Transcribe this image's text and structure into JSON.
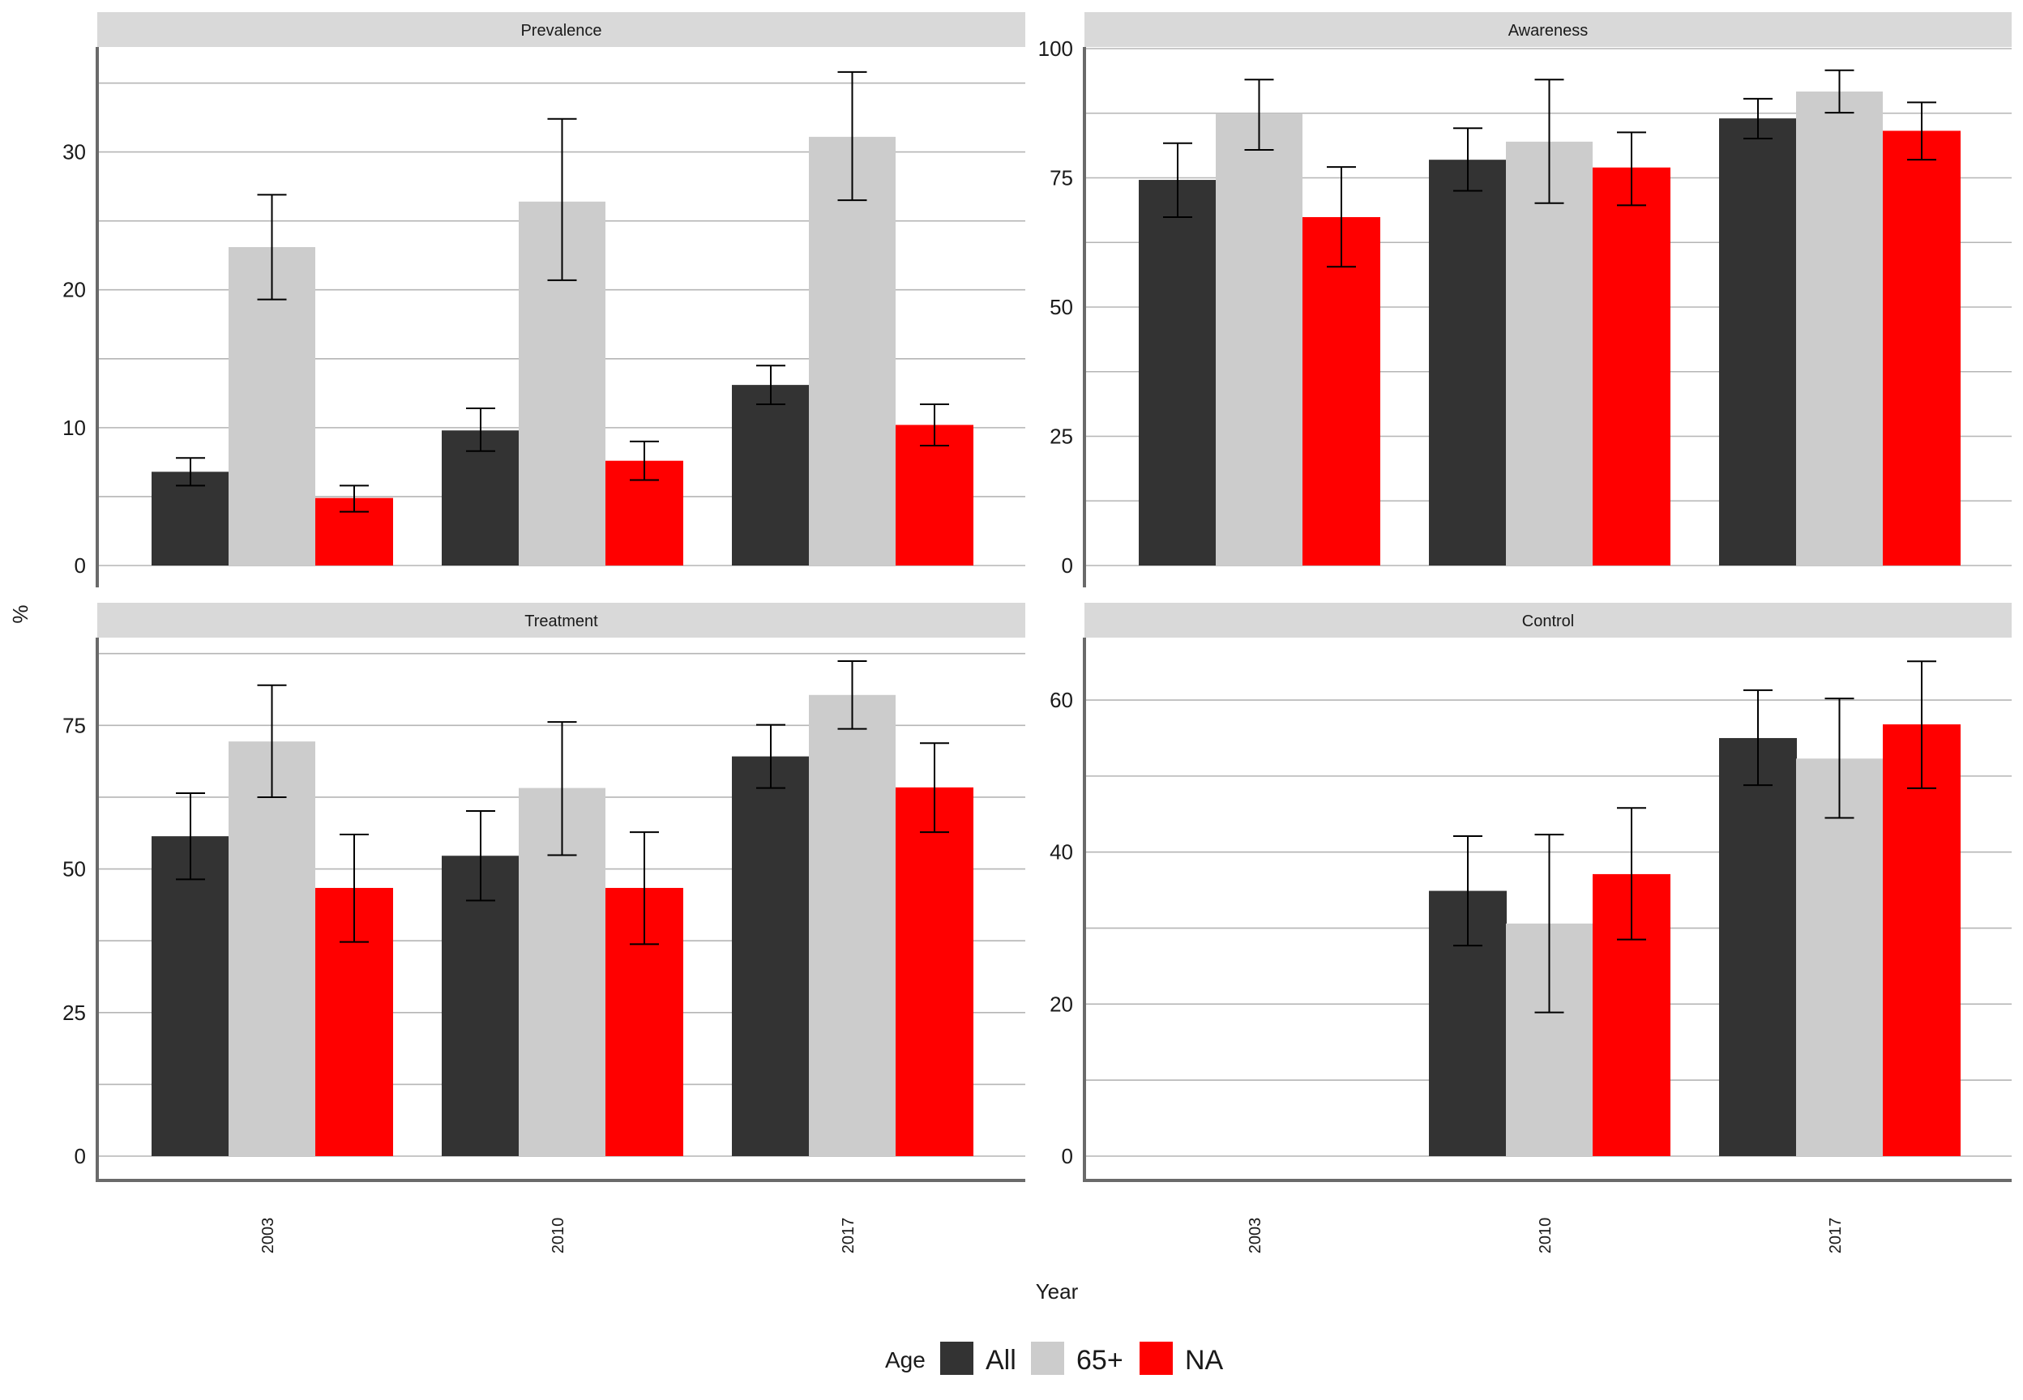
{
  "chart_data": {
    "type": "bar",
    "facet_layout": "2x2",
    "x_axis_title": "Year",
    "y_axis_title": "%",
    "legend": {
      "title": "Age",
      "position": "bottom",
      "entries": [
        "All",
        "65+",
        "NA"
      ]
    },
    "series_colors": {
      "All": "#333333",
      "65+": "#cccccc",
      "NA": "#ff0000"
    },
    "grid": true,
    "error_bars": true,
    "panels": [
      {
        "title": "Prevalence",
        "categories": [
          "2003",
          "2010",
          "2017"
        ],
        "ylim": [
          0,
          37.5
        ],
        "yticks": [
          0,
          10,
          20,
          30
        ],
        "series": [
          {
            "name": "All",
            "values": [
              6.8,
              9.8,
              13.1
            ],
            "lower": [
              5.8,
              8.3,
              11.7
            ],
            "upper": [
              7.8,
              11.4,
              14.5
            ]
          },
          {
            "name": "65+",
            "values": [
              23.1,
              26.4,
              31.1
            ],
            "lower": [
              19.3,
              20.7,
              26.5
            ],
            "upper": [
              26.9,
              32.4,
              35.8
            ]
          },
          {
            "name": "NA",
            "values": [
              4.9,
              7.6,
              10.2
            ],
            "lower": [
              3.9,
              6.2,
              8.7
            ],
            "upper": [
              5.8,
              9.0,
              11.7
            ]
          }
        ]
      },
      {
        "title": "Awareness",
        "categories": [
          "2003",
          "2010",
          "2017"
        ],
        "ylim": [
          0,
          100
        ],
        "yticks": [
          0,
          25,
          50,
          75,
          100
        ],
        "series": [
          {
            "name": "All",
            "values": [
              74.6,
              78.5,
              86.5
            ],
            "lower": [
              67.4,
              72.5,
              82.6
            ],
            "upper": [
              81.7,
              84.6,
              90.3
            ]
          },
          {
            "name": "65+",
            "values": [
              87.5,
              82.0,
              91.7
            ],
            "lower": [
              80.4,
              70.1,
              87.6
            ],
            "upper": [
              94.0,
              94.0,
              95.8
            ]
          },
          {
            "name": "NA",
            "values": [
              67.4,
              77.0,
              84.1
            ],
            "lower": [
              57.8,
              69.7,
              78.5
            ],
            "upper": [
              77.1,
              83.8,
              89.6
            ]
          }
        ]
      },
      {
        "title": "Treatment",
        "categories": [
          "2003",
          "2010",
          "2017"
        ],
        "ylim": [
          0,
          90
        ],
        "yticks": [
          0,
          25,
          50,
          75
        ],
        "series": [
          {
            "name": "All",
            "values": [
              55.7,
              52.3,
              69.6
            ],
            "lower": [
              48.2,
              44.5,
              64.1
            ],
            "upper": [
              63.2,
              60.1,
              75.1
            ]
          },
          {
            "name": "65+",
            "values": [
              72.2,
              64.1,
              80.3
            ],
            "lower": [
              62.5,
              52.4,
              74.4
            ],
            "upper": [
              82.0,
              75.6,
              86.2
            ]
          },
          {
            "name": "NA",
            "values": [
              46.7,
              46.7,
              64.2
            ],
            "lower": [
              37.3,
              36.9,
              56.4
            ],
            "upper": [
              56.0,
              56.4,
              71.9
            ]
          }
        ]
      },
      {
        "title": "Control",
        "categories": [
          "2003",
          "2010",
          "2017"
        ],
        "ylim": [
          0,
          68
        ],
        "yticks": [
          0,
          20,
          40,
          60
        ],
        "series": [
          {
            "name": "All",
            "values": [
              null,
              34.9,
              55.0
            ],
            "lower": [
              null,
              27.7,
              48.8
            ],
            "upper": [
              null,
              42.1,
              61.3
            ]
          },
          {
            "name": "65+",
            "values": [
              null,
              30.6,
              52.3
            ],
            "lower": [
              null,
              18.9,
              44.5
            ],
            "upper": [
              null,
              42.3,
              60.2
            ]
          },
          {
            "name": "NA",
            "values": [
              null,
              37.1,
              56.8
            ],
            "lower": [
              null,
              28.5,
              48.4
            ],
            "upper": [
              null,
              45.8,
              65.1
            ]
          }
        ]
      }
    ]
  }
}
